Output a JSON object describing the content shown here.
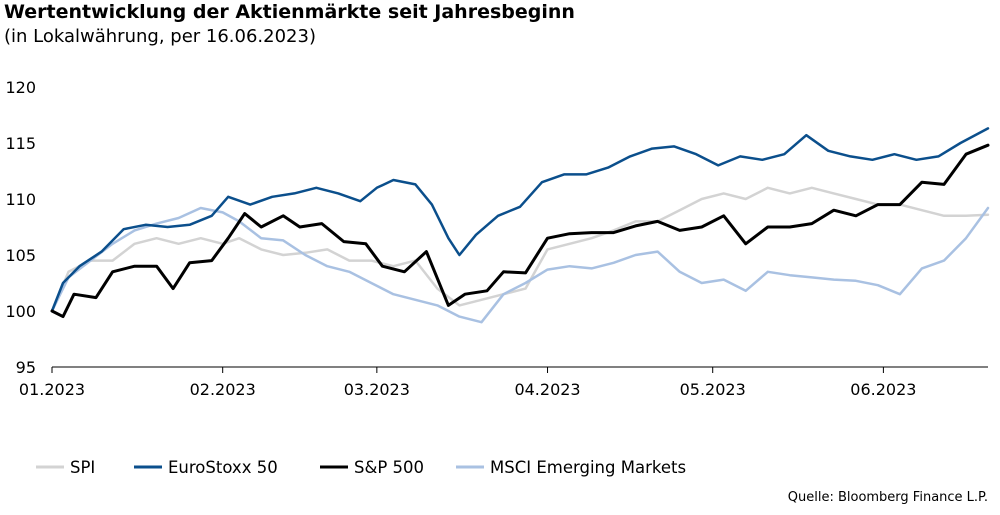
{
  "title": "Wertentwicklung der Aktienmärkte seit Jahresbeginn",
  "subtitle": "(in Lokalwährung, per 16.06.2023)",
  "source": "Quelle: Bloomberg Finance L.P.",
  "chart_data": {
    "type": "line",
    "title": "Wertentwicklung der Aktienmärkte seit Jahresbeginn",
    "subtitle": "(in Lokalwährung, per 16.06.2023)",
    "x_range": [
      "2023-01-01",
      "2023-06-20"
    ],
    "ylim": [
      95,
      120
    ],
    "y_ticks": [
      95,
      100,
      105,
      110,
      115,
      120
    ],
    "x_ticks": [
      {
        "label": "01.2023",
        "date": "2023-01-01"
      },
      {
        "label": "02.2023",
        "date": "2023-02-01"
      },
      {
        "label": "03.2023",
        "date": "2023-03-01"
      },
      {
        "label": "04.2023",
        "date": "2023-04-01"
      },
      {
        "label": "05.2023",
        "date": "2023-05-01"
      },
      {
        "label": "06.2023",
        "date": "2023-06-01"
      }
    ],
    "grid": false,
    "legend_position": "bottom",
    "series": [
      {
        "name": "SPI",
        "color": "#d3d3d3",
        "width": 2.5,
        "points": [
          [
            "2023-01-01",
            100
          ],
          [
            "2023-01-04",
            103.5
          ],
          [
            "2023-01-08",
            104.5
          ],
          [
            "2023-01-12",
            104.5
          ],
          [
            "2023-01-16",
            106
          ],
          [
            "2023-01-20",
            106.5
          ],
          [
            "2023-01-24",
            106
          ],
          [
            "2023-01-28",
            106.5
          ],
          [
            "2023-02-01",
            106
          ],
          [
            "2023-02-04",
            106.5
          ],
          [
            "2023-02-08",
            105.5
          ],
          [
            "2023-02-12",
            105
          ],
          [
            "2023-02-16",
            105.2
          ],
          [
            "2023-02-20",
            105.5
          ],
          [
            "2023-02-24",
            104.5
          ],
          [
            "2023-02-28",
            104.5
          ],
          [
            "2023-03-04",
            104
          ],
          [
            "2023-03-08",
            104.5
          ],
          [
            "2023-03-12",
            102
          ],
          [
            "2023-03-16",
            100.5
          ],
          [
            "2023-03-20",
            101
          ],
          [
            "2023-03-24",
            101.5
          ],
          [
            "2023-03-28",
            102
          ],
          [
            "2023-04-01",
            105.5
          ],
          [
            "2023-04-05",
            106
          ],
          [
            "2023-04-09",
            106.5
          ],
          [
            "2023-04-13",
            107.2
          ],
          [
            "2023-04-17",
            108
          ],
          [
            "2023-04-21",
            108
          ],
          [
            "2023-04-25",
            109
          ],
          [
            "2023-04-29",
            110
          ],
          [
            "2023-05-03",
            110.5
          ],
          [
            "2023-05-07",
            110
          ],
          [
            "2023-05-11",
            111
          ],
          [
            "2023-05-15",
            110.5
          ],
          [
            "2023-05-19",
            111
          ],
          [
            "2023-05-23",
            110.5
          ],
          [
            "2023-05-27",
            110
          ],
          [
            "2023-05-31",
            109.5
          ],
          [
            "2023-06-04",
            109.5
          ],
          [
            "2023-06-08",
            109
          ],
          [
            "2023-06-12",
            108.5
          ],
          [
            "2023-06-16",
            108.5
          ],
          [
            "2023-06-20",
            108.6
          ]
        ]
      },
      {
        "name": "EuroStoxx 50",
        "color": "#0b4f8c",
        "width": 2.5,
        "points": [
          [
            "2023-01-01",
            100
          ],
          [
            "2023-01-03",
            102.5
          ],
          [
            "2023-01-06",
            104
          ],
          [
            "2023-01-10",
            105.3
          ],
          [
            "2023-01-14",
            107.3
          ],
          [
            "2023-01-18",
            107.7
          ],
          [
            "2023-01-22",
            107.5
          ],
          [
            "2023-01-26",
            107.7
          ],
          [
            "2023-01-30",
            108.5
          ],
          [
            "2023-02-02",
            110.2
          ],
          [
            "2023-02-06",
            109.5
          ],
          [
            "2023-02-10",
            110.2
          ],
          [
            "2023-02-14",
            110.5
          ],
          [
            "2023-02-18",
            111
          ],
          [
            "2023-02-22",
            110.5
          ],
          [
            "2023-02-26",
            109.8
          ],
          [
            "2023-03-01",
            111
          ],
          [
            "2023-03-04",
            111.7
          ],
          [
            "2023-03-08",
            111.3
          ],
          [
            "2023-03-11",
            109.5
          ],
          [
            "2023-03-14",
            106.5
          ],
          [
            "2023-03-16",
            105
          ],
          [
            "2023-03-19",
            106.8
          ],
          [
            "2023-03-23",
            108.5
          ],
          [
            "2023-03-27",
            109.3
          ],
          [
            "2023-03-31",
            111.5
          ],
          [
            "2023-04-04",
            112.2
          ],
          [
            "2023-04-08",
            112.2
          ],
          [
            "2023-04-12",
            112.8
          ],
          [
            "2023-04-16",
            113.8
          ],
          [
            "2023-04-20",
            114.5
          ],
          [
            "2023-04-24",
            114.7
          ],
          [
            "2023-04-28",
            114
          ],
          [
            "2023-05-02",
            113
          ],
          [
            "2023-05-06",
            113.8
          ],
          [
            "2023-05-10",
            113.5
          ],
          [
            "2023-05-14",
            114
          ],
          [
            "2023-05-18",
            115.7
          ],
          [
            "2023-05-22",
            114.3
          ],
          [
            "2023-05-26",
            113.8
          ],
          [
            "2023-05-30",
            113.5
          ],
          [
            "2023-06-03",
            114
          ],
          [
            "2023-06-07",
            113.5
          ],
          [
            "2023-06-11",
            113.8
          ],
          [
            "2023-06-15",
            115
          ],
          [
            "2023-06-20",
            116.3
          ]
        ]
      },
      {
        "name": "S&P 500",
        "color": "#000000",
        "width": 3,
        "points": [
          [
            "2023-01-01",
            100
          ],
          [
            "2023-01-03",
            99.5
          ],
          [
            "2023-01-05",
            101.5
          ],
          [
            "2023-01-09",
            101.2
          ],
          [
            "2023-01-12",
            103.5
          ],
          [
            "2023-01-16",
            104
          ],
          [
            "2023-01-20",
            104
          ],
          [
            "2023-01-23",
            102
          ],
          [
            "2023-01-26",
            104.3
          ],
          [
            "2023-01-30",
            104.5
          ],
          [
            "2023-02-02",
            106.5
          ],
          [
            "2023-02-05",
            108.7
          ],
          [
            "2023-02-08",
            107.5
          ],
          [
            "2023-02-12",
            108.5
          ],
          [
            "2023-02-15",
            107.5
          ],
          [
            "2023-02-19",
            107.8
          ],
          [
            "2023-02-23",
            106.2
          ],
          [
            "2023-02-27",
            106
          ],
          [
            "2023-03-02",
            104
          ],
          [
            "2023-03-06",
            103.5
          ],
          [
            "2023-03-10",
            105.3
          ],
          [
            "2023-03-14",
            100.5
          ],
          [
            "2023-03-17",
            101.5
          ],
          [
            "2023-03-21",
            101.8
          ],
          [
            "2023-03-24",
            103.5
          ],
          [
            "2023-03-28",
            103.4
          ],
          [
            "2023-04-01",
            106.5
          ],
          [
            "2023-04-05",
            106.9
          ],
          [
            "2023-04-09",
            107
          ],
          [
            "2023-04-13",
            107
          ],
          [
            "2023-04-17",
            107.6
          ],
          [
            "2023-04-21",
            108
          ],
          [
            "2023-04-25",
            107.2
          ],
          [
            "2023-04-29",
            107.5
          ],
          [
            "2023-05-03",
            108.5
          ],
          [
            "2023-05-07",
            106
          ],
          [
            "2023-05-11",
            107.5
          ],
          [
            "2023-05-15",
            107.5
          ],
          [
            "2023-05-19",
            107.8
          ],
          [
            "2023-05-23",
            109
          ],
          [
            "2023-05-27",
            108.5
          ],
          [
            "2023-05-31",
            109.5
          ],
          [
            "2023-06-04",
            109.5
          ],
          [
            "2023-06-08",
            111.5
          ],
          [
            "2023-06-12",
            111.3
          ],
          [
            "2023-06-16",
            114
          ],
          [
            "2023-06-20",
            114.8
          ]
        ]
      },
      {
        "name": "MSCI Emerging Markets",
        "color": "#a9c1e2",
        "width": 2.5,
        "points": [
          [
            "2023-01-01",
            100
          ],
          [
            "2023-01-04",
            103
          ],
          [
            "2023-01-08",
            104.5
          ],
          [
            "2023-01-12",
            106
          ],
          [
            "2023-01-16",
            107.2
          ],
          [
            "2023-01-20",
            107.8
          ],
          [
            "2023-01-24",
            108.3
          ],
          [
            "2023-01-28",
            109.2
          ],
          [
            "2023-02-01",
            108.8
          ],
          [
            "2023-02-04",
            108
          ],
          [
            "2023-02-08",
            106.5
          ],
          [
            "2023-02-12",
            106.3
          ],
          [
            "2023-02-16",
            105
          ],
          [
            "2023-02-20",
            104
          ],
          [
            "2023-02-24",
            103.5
          ],
          [
            "2023-02-28",
            102.5
          ],
          [
            "2023-03-04",
            101.5
          ],
          [
            "2023-03-08",
            101
          ],
          [
            "2023-03-12",
            100.5
          ],
          [
            "2023-03-16",
            99.5
          ],
          [
            "2023-03-20",
            99
          ],
          [
            "2023-03-24",
            101.5
          ],
          [
            "2023-03-28",
            102.5
          ],
          [
            "2023-04-01",
            103.7
          ],
          [
            "2023-04-05",
            104
          ],
          [
            "2023-04-09",
            103.8
          ],
          [
            "2023-04-13",
            104.3
          ],
          [
            "2023-04-17",
            105
          ],
          [
            "2023-04-21",
            105.3
          ],
          [
            "2023-04-25",
            103.5
          ],
          [
            "2023-04-29",
            102.5
          ],
          [
            "2023-05-03",
            102.8
          ],
          [
            "2023-05-07",
            101.8
          ],
          [
            "2023-05-11",
            103.5
          ],
          [
            "2023-05-15",
            103.2
          ],
          [
            "2023-05-19",
            103
          ],
          [
            "2023-05-23",
            102.8
          ],
          [
            "2023-05-27",
            102.7
          ],
          [
            "2023-05-31",
            102.3
          ],
          [
            "2023-06-04",
            101.5
          ],
          [
            "2023-06-08",
            103.8
          ],
          [
            "2023-06-12",
            104.5
          ],
          [
            "2023-06-16",
            106.5
          ],
          [
            "2023-06-20",
            109.2
          ]
        ]
      }
    ]
  }
}
